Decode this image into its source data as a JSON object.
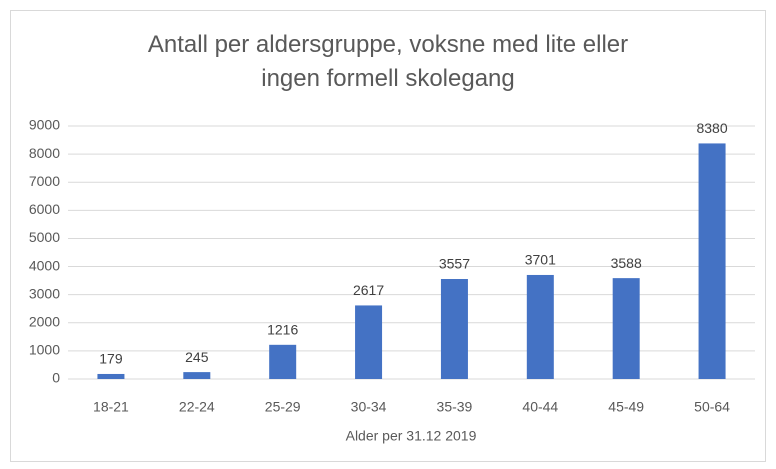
{
  "chart_data": {
    "type": "bar",
    "title": "Antall per aldersgruppe, voksne med lite eller ingen formell skolegang",
    "x_label": "Alder per 31.12 2019",
    "categories": [
      "18-21",
      "22-24",
      "25-29",
      "30-34",
      "35-39",
      "40-44",
      "45-49",
      "50-64"
    ],
    "values": [
      179,
      245,
      1216,
      2617,
      3557,
      3701,
      3588,
      8380
    ],
    "color": "#4472c4",
    "ylim": [
      0,
      9000
    ],
    "yticks": [
      0,
      1000,
      2000,
      3000,
      4000,
      5000,
      6000,
      7000,
      8000,
      9000
    ],
    "grid": true
  }
}
